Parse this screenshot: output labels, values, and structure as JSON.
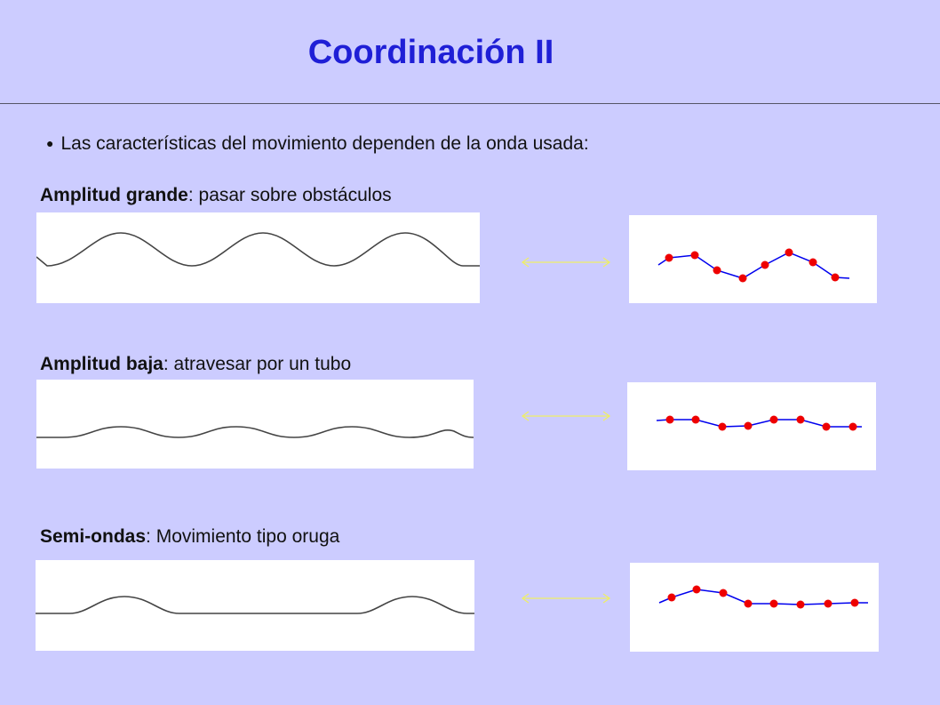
{
  "slide": {
    "title": "Coordinación II",
    "bullet": "Las características del movimiento dependen de la onda usada:"
  },
  "rows": [
    {
      "bold": "Amplitud grande",
      "rest": ": pasar sobre obstáculos"
    },
    {
      "bold": "Amplitud baja",
      "rest": ": atravesar por un tubo"
    },
    {
      "bold": "Semi-ondas",
      "rest": ": Movimiento tipo oruga"
    }
  ],
  "colors": {
    "background": "#ccccff",
    "title": "#1f1fd6",
    "wave": "#444444",
    "robot_line": "#0000ee",
    "robot_joint": "#ee0000",
    "arrow": "#eeee66"
  }
}
